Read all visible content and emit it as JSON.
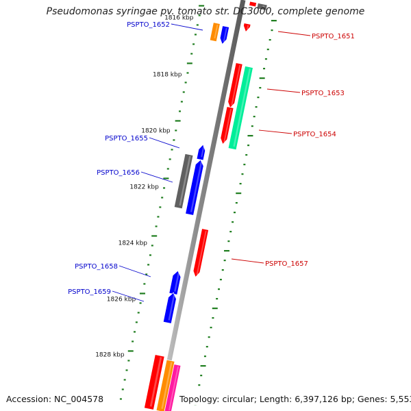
{
  "title": "Pseudomonas syringae pv. tomato str. DC3000, complete genome",
  "footer": {
    "accession": "Accession: NC_004578",
    "summary": "Topology: circular; Length: 6,397,126 bp; Genes: 5,553"
  },
  "colors": {
    "backbone": "#8c8c8c",
    "tick": "#1e7d1e",
    "label_forward": "#0000cc",
    "label_reverse": "#cc0000"
  },
  "scale_labels": [
    "1816 kbp",
    "1818 kbp",
    "1820 kbp",
    "1822 kbp",
    "1824 kbp",
    "1826 kbp",
    "1828 kbp"
  ],
  "genes": [
    {
      "label": "PSPTO_1651",
      "strand": "-",
      "color": "#ff0000"
    },
    {
      "label": "PSPTO_1652",
      "strand": "+",
      "color": "#0000ff"
    },
    {
      "label": "PSPTO_1653",
      "strand": "-",
      "color": "#ff0000"
    },
    {
      "label": "PSPTO_1654",
      "strand": "-",
      "color": "#ff0000"
    },
    {
      "label": "PSPTO_1655",
      "strand": "+",
      "color": "#0000ff"
    },
    {
      "label": "PSPTO_1656",
      "strand": "+",
      "color": "#0000ff"
    },
    {
      "label": "PSPTO_1657",
      "strand": "-",
      "color": "#ff0000"
    },
    {
      "label": "PSPTO_1658",
      "strand": "+",
      "color": "#0000ff"
    },
    {
      "label": "PSPTO_1659",
      "strand": "+",
      "color": "#0000ff"
    }
  ],
  "feature_colors": [
    "#ff0000",
    "#0000ff",
    "#606060",
    "#ff8c00",
    "#00ee99",
    "#ff1aa0"
  ]
}
